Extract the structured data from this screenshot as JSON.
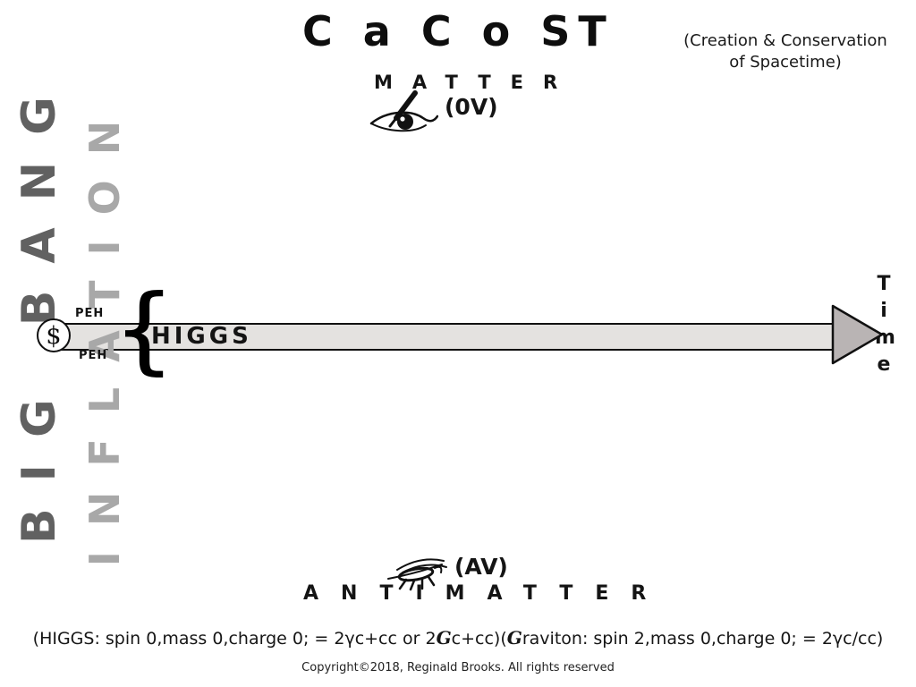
{
  "header": {
    "title": "C a C o ST",
    "subtitle_line1": "(Creation & Conservation",
    "subtitle_line2": "of Spacetime)"
  },
  "matter": {
    "label": "MATTER",
    "vacuum_tag": "(0V)",
    "icon": "eye-pen-doodle-icon"
  },
  "antimatter": {
    "label": "ANTIMATTER",
    "vacuum_tag": "(AV)",
    "icon": "fly-doodle-icon"
  },
  "left_axis": {
    "big_bang_label": "BIG BANG",
    "inflation_label": "INFLATION",
    "big_bang_color": "#616161",
    "inflation_color": "#a8a8a8"
  },
  "timeline": {
    "origin_symbol": "$",
    "peh_top": "PEH",
    "peh_bottom": "PEH",
    "brace_glyph": "{",
    "bar_label": "HIGGS",
    "time_axis_label": "Time",
    "bar_fill_color": "#e4e2e0",
    "arrowhead_fill_color": "#b9b4b4"
  },
  "footer": {
    "formula_segments": [
      {
        "text": "(HIGGS: spin 0,mass 0,charge 0; = 2γc+cc or 2",
        "script": false
      },
      {
        "text": "G",
        "script": true
      },
      {
        "text": "c+cc)(",
        "script": false
      },
      {
        "text": "G",
        "script": true
      },
      {
        "text": "raviton: spin 2,mass 0,charge 0; = 2γc/cc)",
        "script": false
      }
    ],
    "copyright": "Copyright©2018, Reginald Brooks. All rights reserved"
  }
}
